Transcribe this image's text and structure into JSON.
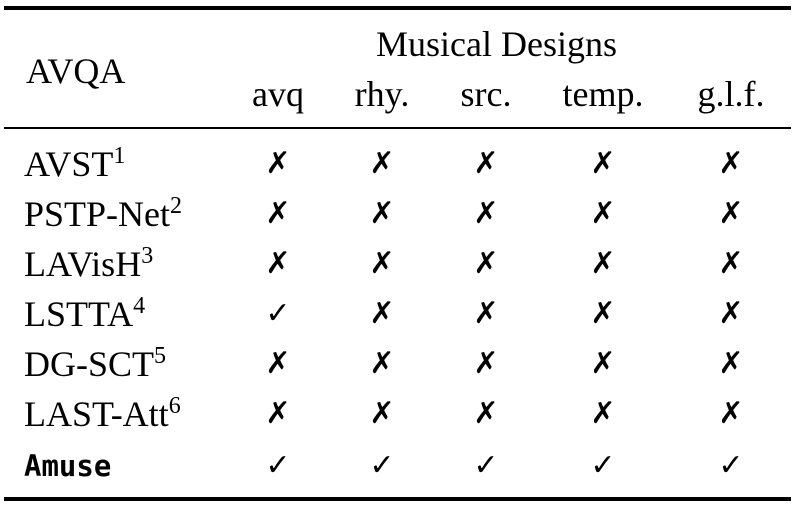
{
  "table": {
    "corner_label": "AVQA",
    "group_header": "Musical Designs",
    "columns": [
      "avq",
      "rhy.",
      "src.",
      "temp.",
      "g.l.f."
    ],
    "symbols": {
      "yes": "✓",
      "no": "✗"
    },
    "rows": [
      {
        "name": "AVST",
        "ref": "1",
        "values": [
          "✗",
          "✗",
          "✗",
          "✗",
          "✗"
        ]
      },
      {
        "name": "PSTP-Net",
        "ref": "2",
        "values": [
          "✗",
          "✗",
          "✗",
          "✗",
          "✗"
        ]
      },
      {
        "name": "LAVisH",
        "ref": "3",
        "values": [
          "✗",
          "✗",
          "✗",
          "✗",
          "✗"
        ]
      },
      {
        "name": "LSTTA",
        "ref": "4",
        "values": [
          "✓",
          "✗",
          "✗",
          "✗",
          "✗"
        ]
      },
      {
        "name": "DG-SCT",
        "ref": "5",
        "values": [
          "✗",
          "✗",
          "✗",
          "✗",
          "✗"
        ]
      },
      {
        "name": "LAST-Att",
        "ref": "6",
        "values": [
          "✗",
          "✗",
          "✗",
          "✗",
          "✗"
        ]
      },
      {
        "name": "Amuse",
        "ref": "",
        "values": [
          "✓",
          "✓",
          "✓",
          "✓",
          "✓"
        ]
      }
    ]
  }
}
